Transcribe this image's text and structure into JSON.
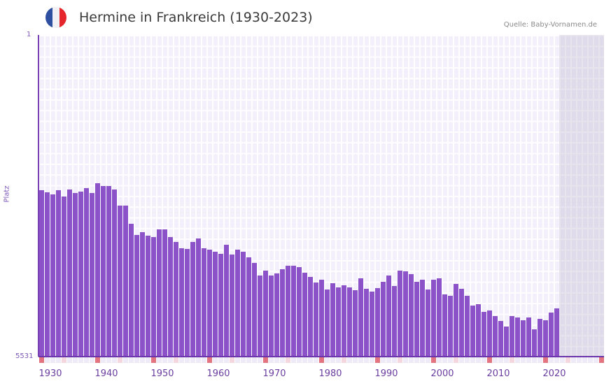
{
  "header": {
    "title": "Hermine in Frankreich (1930-2023)",
    "source": "Quelle: Baby-Vornamen.de",
    "flag": {
      "icon": "france-flag-icon",
      "colors": [
        "#2f4fa1",
        "#f1f1f5",
        "#e5262d"
      ]
    }
  },
  "axis": {
    "y_top_label": "1",
    "y_bottom_label": "5531",
    "y_title": "Platz",
    "x_labels": [
      "1930",
      "1940",
      "1950",
      "1960",
      "1970",
      "1980",
      "1990",
      "2000",
      "2010",
      "2020"
    ]
  },
  "colors": {
    "bar": "#8c52c7",
    "axis": "#7b3fb4",
    "marker": "#e27481",
    "background": "#f3effb"
  },
  "chart_data": {
    "type": "bar",
    "title": "Hermine in Frankreich (1930-2023)",
    "xlabel": "",
    "ylabel": "Platz",
    "y_inverted": true,
    "ylim": [
      1,
      5531
    ],
    "x_range": [
      1930,
      2030
    ],
    "grid": true,
    "categories": [
      1930,
      1931,
      1932,
      1933,
      1934,
      1935,
      1936,
      1937,
      1938,
      1939,
      1940,
      1941,
      1942,
      1943,
      1944,
      1945,
      1946,
      1947,
      1948,
      1949,
      1950,
      1951,
      1952,
      1953,
      1954,
      1955,
      1956,
      1957,
      1958,
      1959,
      1960,
      1961,
      1962,
      1963,
      1964,
      1965,
      1966,
      1967,
      1968,
      1969,
      1970,
      1971,
      1972,
      1973,
      1974,
      1975,
      1976,
      1977,
      1978,
      1979,
      1980,
      1981,
      1982,
      1983,
      1984,
      1985,
      1986,
      1987,
      1988,
      1989,
      1990,
      1991,
      1992,
      1993,
      1994,
      1995,
      1996,
      1997,
      1998,
      1999,
      2000,
      2001,
      2002,
      2003,
      2004,
      2005,
      2006,
      2007,
      2008,
      2009,
      2010,
      2011,
      2012,
      2013,
      2014,
      2015,
      2016,
      2017,
      2018,
      2019,
      2020,
      2021,
      2022
    ],
    "values": [
      2670,
      2706,
      2742,
      2670,
      2778,
      2658,
      2718,
      2694,
      2634,
      2718,
      2549,
      2597,
      2597,
      2658,
      2934,
      2934,
      3247,
      3439,
      3391,
      3451,
      3475,
      3343,
      3343,
      3475,
      3559,
      3667,
      3679,
      3559,
      3499,
      3667,
      3691,
      3727,
      3763,
      3607,
      3775,
      3691,
      3727,
      3823,
      3920,
      4136,
      4052,
      4136,
      4100,
      4028,
      3968,
      3968,
      3992,
      4088,
      4160,
      4256,
      4208,
      4377,
      4268,
      4340,
      4304,
      4340,
      4389,
      4184,
      4365,
      4413,
      4353,
      4244,
      4136,
      4316,
      4052,
      4064,
      4112,
      4244,
      4208,
      4377,
      4208,
      4184,
      4461,
      4485,
      4280,
      4365,
      4485,
      4653,
      4629,
      4761,
      4737,
      4834,
      4918,
      5014,
      4834,
      4858,
      4906,
      4858,
      5062,
      4882,
      4906,
      4773,
      4701
    ]
  }
}
